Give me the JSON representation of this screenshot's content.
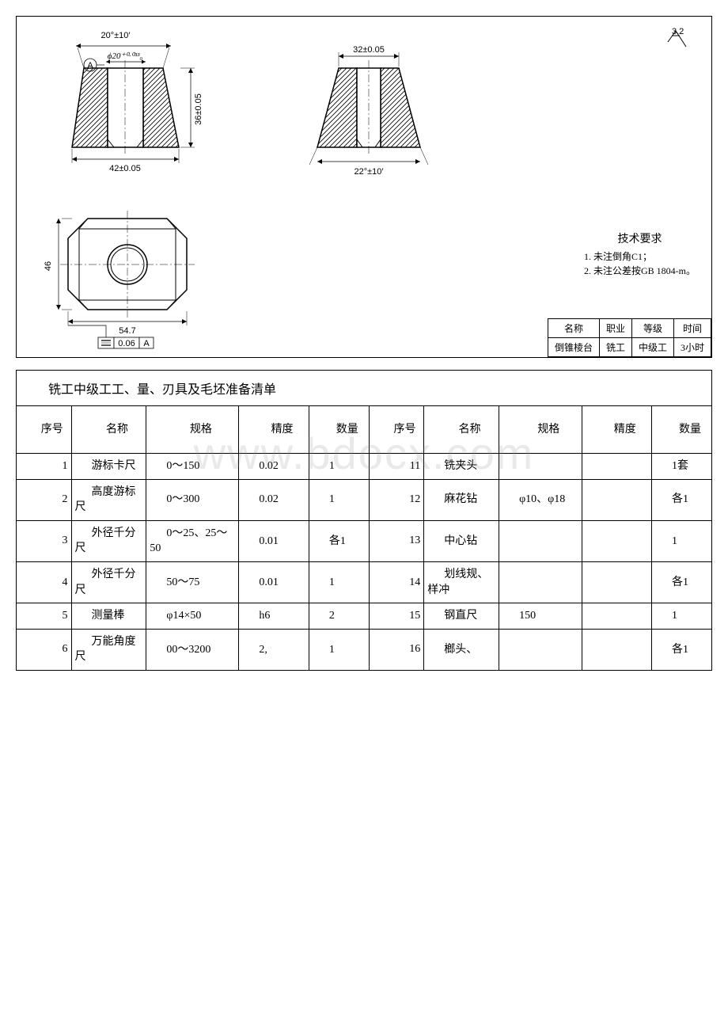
{
  "drawing": {
    "front": {
      "top_angle": "20°±10′",
      "bore": "ϕ20⁺⁰·⁰³³₀",
      "datum": "A",
      "height": "36±0.05",
      "bottom": "42±0.05"
    },
    "side": {
      "top": "32±0.05",
      "angle": "22°±10′"
    },
    "plan": {
      "wide": "54.7",
      "height": "46",
      "gtol": "0.06",
      "gtol_datum": "A"
    },
    "surface_finish": "3.2",
    "tech_req": {
      "title": "技术要求",
      "l1": "1. 未注倒角C1；",
      "l2": "2. 未注公差按GB 1804-m。"
    },
    "title_block": {
      "h1": "名称",
      "h2": "职业",
      "h3": "等级",
      "h4": "时间",
      "v1": "倒锥棱台",
      "v2": "铣工",
      "v3": "中级工",
      "v4": "3小时"
    }
  },
  "list": {
    "title": "铣工中级工工、量、刃具及毛坯准备清单",
    "headers": {
      "idx": "序号",
      "name": "名称",
      "spec": "规格",
      "prec": "精度",
      "qty": "数量"
    },
    "rows": [
      {
        "a": {
          "idx": "1",
          "name": "游标卡尺",
          "spec": "0～150",
          "prec": "0.02",
          "qty": "1"
        },
        "b": {
          "idx": "11",
          "name": "铣夹头",
          "spec": "",
          "prec": "",
          "qty": "1套"
        }
      },
      {
        "a": {
          "idx": "2",
          "name": "高度游标尺",
          "spec": "0～300",
          "prec": "0.02",
          "qty": "1"
        },
        "b": {
          "idx": "12",
          "name": "麻花钻",
          "spec": "φ10、φ18",
          "prec": "",
          "qty": "各1"
        }
      },
      {
        "a": {
          "idx": "3",
          "name": "外径千分尺",
          "spec": "0～25、25～50",
          "prec": "0.01",
          "qty": "各1"
        },
        "b": {
          "idx": "13",
          "name": "中心钻",
          "spec": "",
          "prec": "",
          "qty": "1"
        }
      },
      {
        "a": {
          "idx": "4",
          "name": "外径千分尺",
          "spec": "50～75",
          "prec": "0.01",
          "qty": "1"
        },
        "b": {
          "idx": "14",
          "name": "划线规、样冲",
          "spec": "",
          "prec": "",
          "qty": "各1"
        }
      },
      {
        "a": {
          "idx": "5",
          "name": "测量棒",
          "spec": "φ14×50",
          "prec": "h6",
          "qty": "2"
        },
        "b": {
          "idx": "15",
          "name": "钢直尺",
          "spec": "150",
          "prec": "",
          "qty": "1"
        }
      },
      {
        "a": {
          "idx": "6",
          "name": "万能角度尺",
          "spec": "00～3200",
          "prec": "2,",
          "qty": "1"
        },
        "b": {
          "idx": "16",
          "name": "榔头、",
          "spec": "",
          "prec": "",
          "qty": "各1"
        }
      }
    ]
  },
  "watermark": "www.bdocx.com"
}
